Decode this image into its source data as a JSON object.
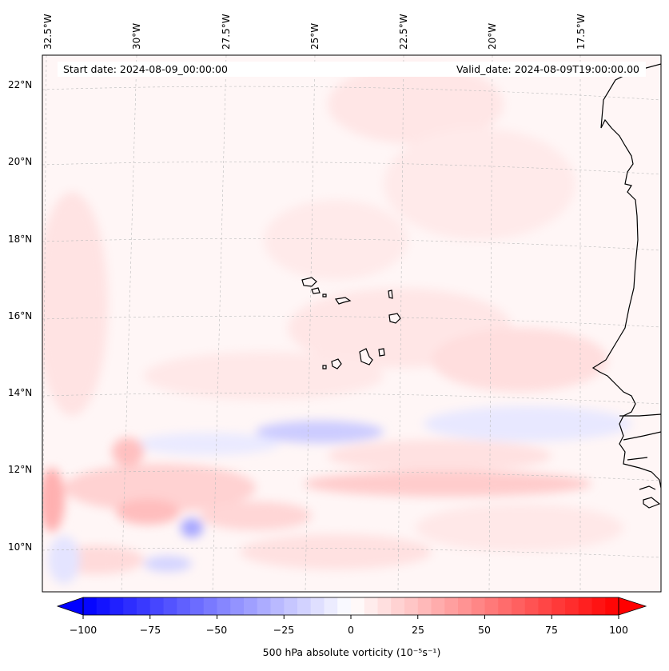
{
  "map": {
    "title_left": "Start date: 2024-08-09_00:00:00",
    "title_right": "Valid_date: 2024-08-09T19:00:00.00",
    "lon_ticks": [
      "32.5°W",
      "30°W",
      "27.5°W",
      "25°W",
      "22.5°W",
      "20°W",
      "17.5°W"
    ],
    "lat_ticks": [
      "22°N",
      "20°N",
      "18°N",
      "16°N",
      "14°N",
      "12°N",
      "10°N"
    ]
  },
  "colorbar": {
    "ticks": [
      "−100",
      "−75",
      "−50",
      "−25",
      "0",
      "25",
      "50",
      "75",
      "100"
    ],
    "label": "500 hPa absolute vorticity (10⁻⁵s⁻¹)",
    "min": -100,
    "max": 100,
    "neg_color": "#0000ff",
    "pos_color": "#ff0000"
  },
  "colors": {
    "background_tint": "#fff5f5",
    "coastline": "#000000",
    "gridline": "#bbbbbb"
  }
}
